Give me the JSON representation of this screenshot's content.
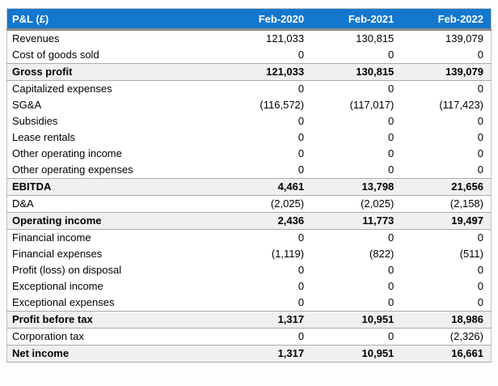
{
  "table": {
    "title": "P&L (£)",
    "columns": [
      "Feb-2020",
      "Feb-2021",
      "Feb-2022"
    ],
    "rows": [
      {
        "label": "Revenues",
        "values": [
          "121,033",
          "130,815",
          "139,079"
        ],
        "total": false
      },
      {
        "label": "Cost of goods sold",
        "values": [
          "0",
          "0",
          "0"
        ],
        "total": false
      },
      {
        "label": "Gross profit",
        "values": [
          "121,033",
          "130,815",
          "139,079"
        ],
        "total": true
      },
      {
        "label": "Capitalized expenses",
        "values": [
          "0",
          "0",
          "0"
        ],
        "total": false
      },
      {
        "label": "SG&A",
        "values": [
          "(116,572)",
          "(117,017)",
          "(117,423)"
        ],
        "total": false
      },
      {
        "label": "Subsidies",
        "values": [
          "0",
          "0",
          "0"
        ],
        "total": false
      },
      {
        "label": "Lease rentals",
        "values": [
          "0",
          "0",
          "0"
        ],
        "total": false
      },
      {
        "label": "Other operating income",
        "values": [
          "0",
          "0",
          "0"
        ],
        "total": false
      },
      {
        "label": "Other operating expenses",
        "values": [
          "0",
          "0",
          "0"
        ],
        "total": false
      },
      {
        "label": "EBITDA",
        "values": [
          "4,461",
          "13,798",
          "21,656"
        ],
        "total": true
      },
      {
        "label": "D&A",
        "values": [
          "(2,025)",
          "(2,025)",
          "(2,158)"
        ],
        "total": false
      },
      {
        "label": "Operating income",
        "values": [
          "2,436",
          "11,773",
          "19,497"
        ],
        "total": true
      },
      {
        "label": "Financial income",
        "values": [
          "0",
          "0",
          "0"
        ],
        "total": false
      },
      {
        "label": "Financial expenses",
        "values": [
          "(1,119)",
          "(822)",
          "(511)"
        ],
        "total": false
      },
      {
        "label": "Profit (loss) on disposal",
        "values": [
          "0",
          "0",
          "0"
        ],
        "total": false
      },
      {
        "label": "Exceptional income",
        "values": [
          "0",
          "0",
          "0"
        ],
        "total": false
      },
      {
        "label": "Exceptional expenses",
        "values": [
          "0",
          "0",
          "0"
        ],
        "total": false
      },
      {
        "label": "Profit before tax",
        "values": [
          "1,317",
          "10,951",
          "18,986"
        ],
        "total": true
      },
      {
        "label": "Corporation tax",
        "values": [
          "0",
          "0",
          "(2,326)"
        ],
        "total": false
      },
      {
        "label": "Net income",
        "values": [
          "1,317",
          "10,951",
          "16,661"
        ],
        "total": true
      }
    ]
  },
  "colors": {
    "header_bg": "#1277cd",
    "header_text": "#ffffff",
    "header_underline": "#8a8a8a",
    "total_row_bg": "#f0f0f0",
    "total_row_border": "#ababab",
    "table_border": "#c3c3c3",
    "page_bg": "#fdfdfd"
  }
}
